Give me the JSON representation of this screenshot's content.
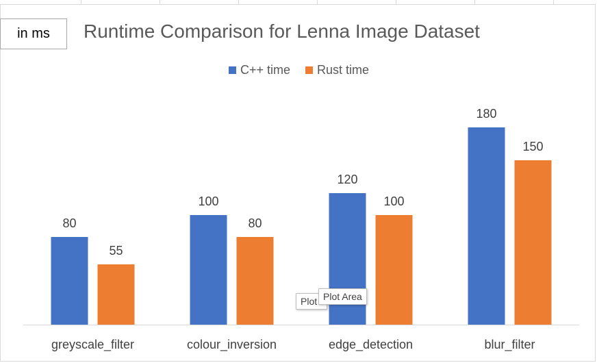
{
  "unit_label": "in ms",
  "tooltip_back_label": "Plot .",
  "tooltip_front_label": "Plot Area",
  "chart_data": {
    "type": "bar",
    "title": "Runtime Comparison for Lenna Image Dataset",
    "xlabel": "",
    "ylabel": "",
    "ylim": [
      0,
      200
    ],
    "grid": false,
    "legend_position": "top",
    "categories": [
      "greyscale_filter",
      "colour_inversion",
      "edge_detection",
      "blur_filter"
    ],
    "series": [
      {
        "name": "C++ time",
        "color": "#4472C4",
        "values": [
          80,
          100,
          120,
          180
        ]
      },
      {
        "name": "Rust time",
        "color": "#ED7D31",
        "values": [
          55,
          80,
          100,
          150
        ]
      }
    ]
  }
}
